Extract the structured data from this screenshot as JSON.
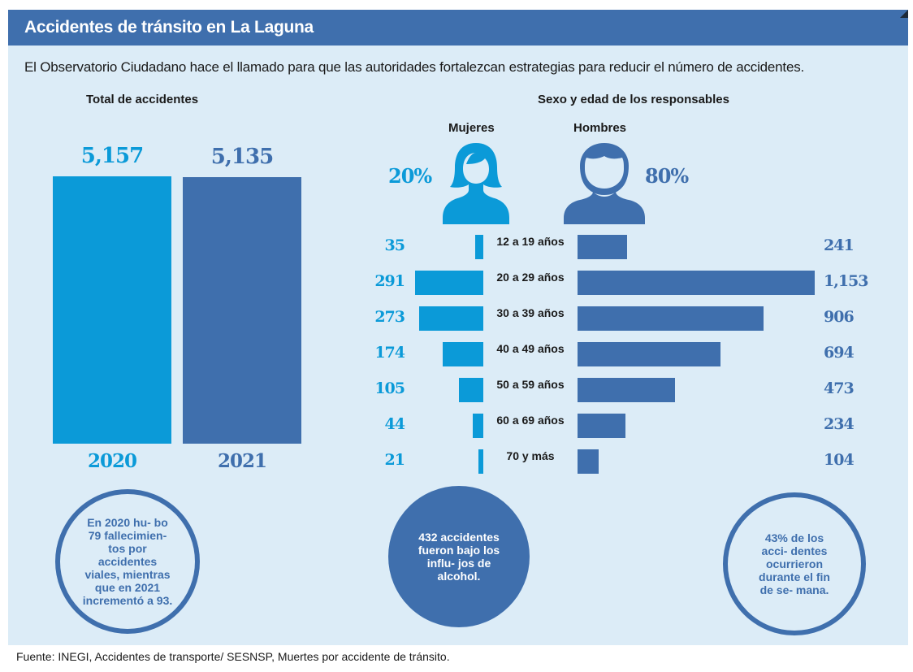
{
  "header": {
    "title": "Accidentes de tránsito en La Laguna"
  },
  "subtitle": "El Observatorio Ciudadano hace el llamado para que las autoridades fortalezcan estrategias para reducir el número de accidentes.",
  "colors": {
    "women": "#0b9ad8",
    "men": "#3f6fad",
    "panel": "#dcecf7",
    "header": "#3f6fad"
  },
  "chart_data": [
    {
      "type": "bar",
      "title": "Total de accidentes",
      "categories": [
        "2020",
        "2021"
      ],
      "values": [
        5157,
        5135
      ],
      "value_labels": [
        "5,157",
        "5,135"
      ],
      "colors": [
        "#0b9ad8",
        "#3f6fad"
      ],
      "ylim": [
        0,
        5157
      ]
    },
    {
      "type": "bar",
      "title": "Sexo y edad de los responsables",
      "categories": [
        "12 a 19 años",
        "20 a 29 años",
        "30 a 39 años",
        "40 a 49 años",
        "50 a 59 años",
        "60 a 69 años",
        "70 y más"
      ],
      "series": [
        {
          "name": "Mujeres",
          "percent": "20%",
          "values": [
            35,
            291,
            273,
            174,
            105,
            44,
            21
          ],
          "labels": [
            "35",
            "291",
            "273",
            "174",
            "105",
            "44",
            "21"
          ]
        },
        {
          "name": "Hombres",
          "percent": "80%",
          "values": [
            241,
            1153,
            906,
            694,
            473,
            234,
            104
          ],
          "labels": [
            "241",
            "1,153",
            "906",
            "694",
            "473",
            "234",
            "104"
          ]
        }
      ],
      "xlim": [
        0,
        1153
      ]
    }
  ],
  "bubbles": [
    {
      "text": "En 2020 hu- bo 79 fallecimien- tos por accidentes viales, mientras que en 2021 incrementó a 93."
    },
    {
      "text": "432 accidentes fueron bajo los influ- jos de alcohol."
    },
    {
      "text": "43% de los acci- dentes ocurrieron durante el fin de se- mana."
    }
  ],
  "source": "Fuente: INEGI, Accidentes de transporte/ SESNSP, Muertes por accidente de tránsito."
}
